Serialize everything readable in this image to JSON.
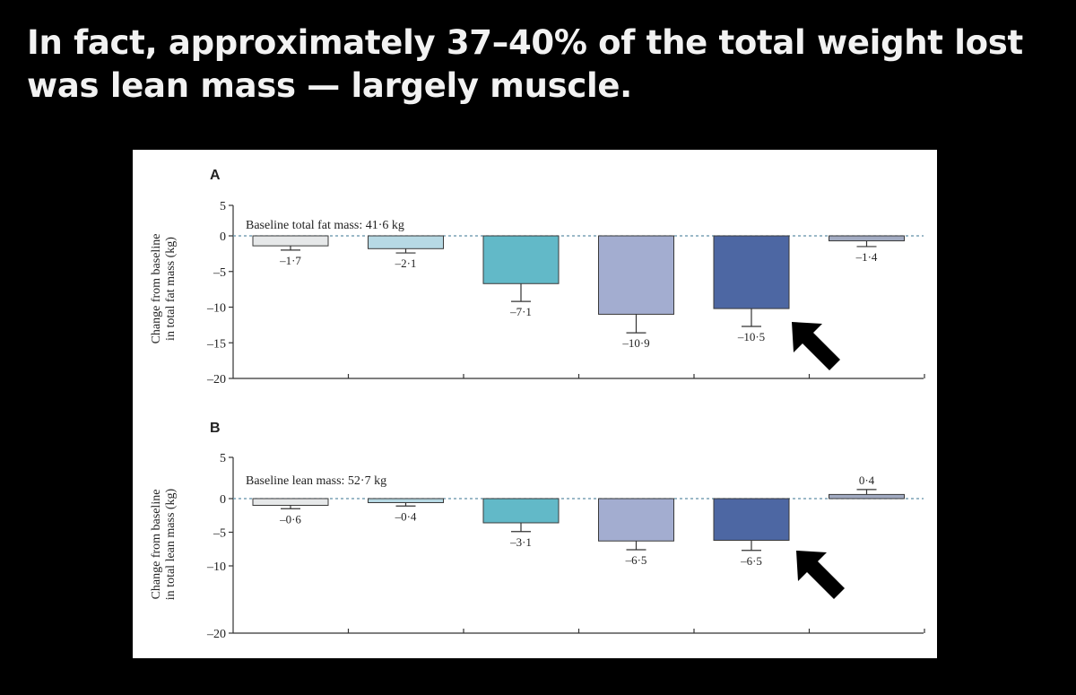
{
  "headline": {
    "line1": "In fact, approximately 37–40% of the total weight lost",
    "line2": "was lean mass — largely muscle."
  },
  "colors": {
    "background": "#000000",
    "bar_colors": [
      "#e6e8e9",
      "#b7d9e4",
      "#62b9c8",
      "#a3add0",
      "#4d67a3",
      "#a2abc2"
    ],
    "arrow": "#000000"
  },
  "icons": {
    "callout_arrow": "arrow-pointing-up-left-icon"
  },
  "chart_data": [
    {
      "panel_label": "A",
      "type": "bar",
      "baseline_text": "Baseline total fat mass: 41·6 kg",
      "ylabel_line1": "Change from baseline",
      "ylabel_line2": "in total fat mass (kg)",
      "ylim": [
        -20,
        5
      ],
      "yticks": [
        5,
        0,
        -5,
        -10,
        -15,
        -20
      ],
      "ytick_labels": [
        "5",
        "0",
        "–5",
        "–10",
        "–15",
        "–20"
      ],
      "values": [
        -1.7,
        -2.1,
        -7.1,
        -10.9,
        -10.5,
        -1.4
      ],
      "bar_fill": [
        -1.4,
        -1.8,
        -6.7,
        -11.0,
        -10.2,
        -0.7
      ],
      "errors": [
        0.6,
        0.6,
        2.5,
        2.6,
        2.5,
        0.8
      ],
      "value_labels": [
        "–1·7",
        "–2·1",
        "–7·1",
        "–10·9",
        "–10·5",
        "–1·4"
      ],
      "grid": false,
      "arrow_at_group": 5
    },
    {
      "panel_label": "B",
      "type": "bar",
      "baseline_text": "Baseline lean mass: 52·7 kg",
      "ylabel_line1": "Change from baseline",
      "ylabel_line2": "in total lean mass (kg)",
      "ylim": [
        -20,
        5
      ],
      "yticks": [
        5,
        0,
        -5,
        -10,
        -20
      ],
      "ytick_labels": [
        "5",
        "0",
        "–5",
        "–10",
        "–20"
      ],
      "values": [
        -0.6,
        -0.4,
        -3.1,
        -6.5,
        -6.5,
        0.4
      ],
      "bar_fill": [
        -1.0,
        -0.6,
        -3.6,
        -6.3,
        -6.2,
        0.5
      ],
      "errors": [
        0.5,
        0.5,
        1.3,
        1.3,
        1.5,
        0.6
      ],
      "value_labels": [
        "–0·6",
        "–0·4",
        "–3·1",
        "–6·5",
        "–6·5",
        "0·4"
      ],
      "grid": false,
      "arrow_at_group": 5
    }
  ]
}
